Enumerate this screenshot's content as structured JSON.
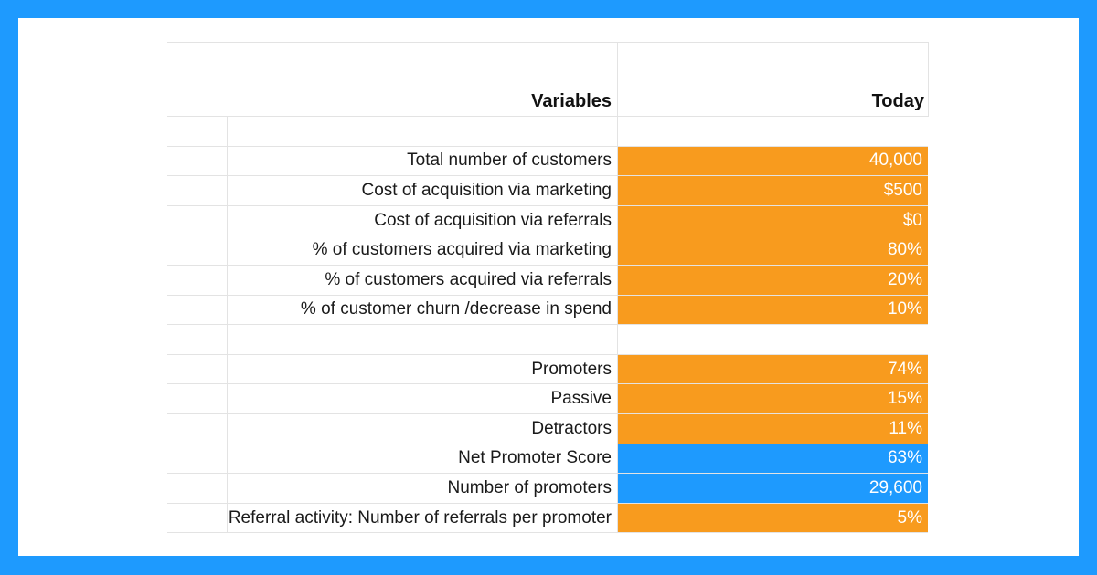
{
  "table": {
    "header": {
      "variables": "Variables",
      "today": "Today"
    },
    "rows": [
      {
        "label": "",
        "value": "",
        "color": "none"
      },
      {
        "label": "Total number of customers",
        "value": "40,000",
        "color": "orange"
      },
      {
        "label": "Cost of acquisition via marketing",
        "value": "$500",
        "color": "orange"
      },
      {
        "label": "Cost of acquisition via referrals",
        "value": "$0",
        "color": "orange"
      },
      {
        "label": "% of customers acquired via marketing",
        "value": "80%",
        "color": "orange"
      },
      {
        "label": "% of customers acquired via referrals",
        "value": "20%",
        "color": "orange"
      },
      {
        "label": "%  of customer churn /decrease in spend",
        "value": "10%",
        "color": "orange"
      },
      {
        "label": "",
        "value": "",
        "color": "none"
      },
      {
        "label": "Promoters",
        "value": "74%",
        "color": "orange"
      },
      {
        "label": "Passive",
        "value": "15%",
        "color": "orange"
      },
      {
        "label": "Detractors",
        "value": "11%",
        "color": "orange"
      },
      {
        "label": "Net Promoter Score",
        "value": "63%",
        "color": "blue"
      },
      {
        "label": "Number of promoters",
        "value": "29,600",
        "color": "blue"
      },
      {
        "label": "Referral activity: Number of referrals per promoter",
        "value": "5%",
        "color": "orange"
      }
    ]
  },
  "colors": {
    "orange": "#f89b1e",
    "blue": "#1e9afe",
    "frame": "#1e9afe"
  }
}
